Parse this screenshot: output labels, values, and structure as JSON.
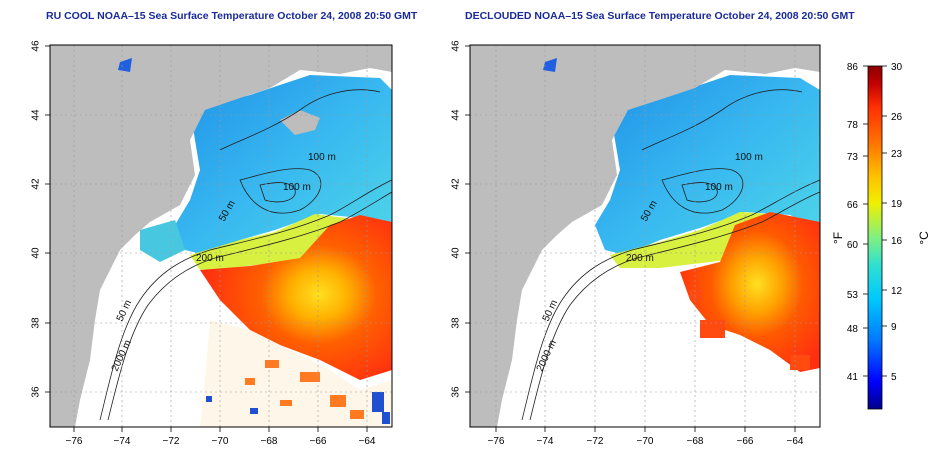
{
  "panels": [
    {
      "title": "RU COOL NOAA–15 Sea Surface Temperature October 24, 2008 20:50 GMT",
      "contour_labels": [
        "100 m",
        "100 m",
        "50 m",
        "200 m",
        "50 m",
        "2000 m"
      ]
    },
    {
      "title": "DECLOUDED NOAA–15 Sea Surface Temperature October 24, 2008 20:50 GMT",
      "contour_labels": [
        "100 m",
        "100 m",
        "50 m",
        "200 m",
        "50 m",
        "2000 m"
      ]
    }
  ],
  "axes": {
    "lon_ticks": [
      "−76",
      "−74",
      "−72",
      "−70",
      "−68",
      "−66",
      "−64"
    ],
    "lat_ticks": [
      "36",
      "38",
      "40",
      "42",
      "44",
      "46"
    ],
    "lon_range": [
      -77,
      -63
    ],
    "lat_range": [
      35,
      46
    ]
  },
  "colorbar": {
    "fahrenheit_ticks": [
      "86",
      "78",
      "73",
      "66",
      "60",
      "53",
      "48",
      "41"
    ],
    "celsius_ticks": [
      "30",
      "26",
      "23",
      "19",
      "16",
      "12",
      "9",
      "5"
    ],
    "fahrenheit_unit": "°F",
    "celsius_unit": "°C",
    "colors": [
      "#00008b",
      "#0000ff",
      "#0078ff",
      "#00c8ff",
      "#30e0d0",
      "#80f080",
      "#f0f000",
      "#ffc000",
      "#ff7000",
      "#ff3000",
      "#c00000",
      "#8b0000"
    ]
  },
  "map_colors": {
    "land": "#bdbdbd",
    "cloud": "#ffffff",
    "cold_water": "#3cb8f0",
    "gulf_stream": "#ff4a10"
  }
}
